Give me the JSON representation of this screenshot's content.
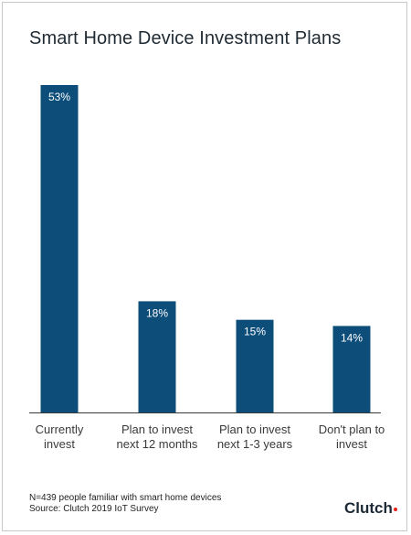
{
  "colors": {
    "bar": "#0d4d7a",
    "axis": "#3a3a3a",
    "label": "#3a3a3a",
    "value_label": "#ffffff",
    "logo_dot": "#e62415"
  },
  "chart_data": {
    "type": "bar",
    "title": "Smart Home Device Investment Plans",
    "categories": [
      [
        "Currently",
        "invest"
      ],
      [
        "Plan to invest",
        "next 12 months"
      ],
      [
        "Plan to invest",
        "next 1-3 years"
      ],
      [
        "Don't plan to",
        "invest"
      ]
    ],
    "values": [
      53,
      18,
      15,
      14
    ],
    "value_labels": [
      "53%",
      "18%",
      "15%",
      "14%"
    ],
    "xlabel": "",
    "ylabel": "",
    "ylim": [
      0,
      53
    ],
    "grid": false,
    "legend": "none"
  },
  "footnote": {
    "line1": "N=439 people familiar with smart home devices",
    "line2": "Source: Clutch 2019 IoT Survey"
  },
  "logo": {
    "text": "Clutch"
  }
}
